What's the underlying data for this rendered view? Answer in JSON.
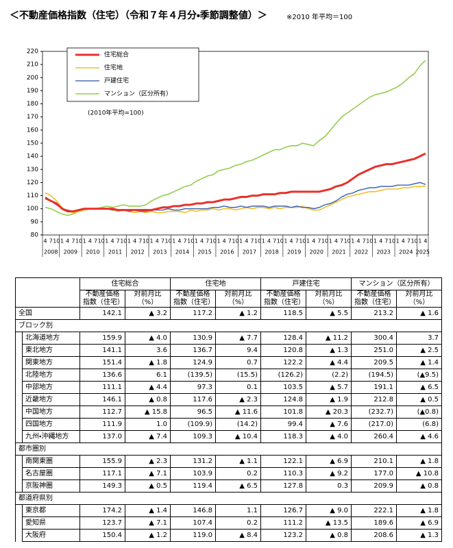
{
  "chart_data": {
    "type": "line",
    "title": "＜不動産価格指数（住宅）（令和７年４月分・季節調整値）＞",
    "subtitle": "※2010 年平均＝100",
    "note": "(2010年平均=100)",
    "categories": [
      "4",
      "7",
      "10",
      "1",
      "4",
      "7",
      "10",
      "1",
      "4",
      "7",
      "10",
      "1",
      "4",
      "7",
      "10",
      "1",
      "4",
      "7",
      "10",
      "1",
      "4",
      "7",
      "10",
      "1",
      "4",
      "7",
      "10",
      "1",
      "4",
      "7",
      "10",
      "1",
      "4",
      "7",
      "10",
      "1",
      "4",
      "7",
      "10",
      "1",
      "4",
      "7",
      "10",
      "1",
      "4",
      "7",
      "10",
      "1",
      "4",
      "7",
      "10",
      "1",
      "4",
      "7",
      "10",
      "1",
      "4",
      "7",
      "10",
      "1",
      "4",
      "7",
      "10",
      "1",
      "4",
      "7",
      "10",
      "1",
      "4"
    ],
    "years": [
      "2008",
      "2009",
      "2010",
      "2011",
      "2012",
      "2013",
      "2014",
      "2015",
      "2016",
      "2017",
      "2018",
      "2019",
      "2020",
      "2021",
      "2022",
      "2023",
      "2024",
      "2025"
    ],
    "ylim": [
      80,
      220
    ],
    "yticks": [
      80,
      90,
      100,
      110,
      120,
      130,
      140,
      150,
      160,
      170,
      180,
      190,
      200,
      210,
      220
    ],
    "series": [
      {
        "name": "住宅総合",
        "color": "#e8302a",
        "values": [
          108,
          106,
          104,
          100,
          98,
          98,
          99,
          100,
          100,
          100,
          100,
          100,
          100,
          99,
          99,
          99,
          99,
          99,
          99,
          99,
          100,
          101,
          101,
          102,
          102,
          103,
          103,
          104,
          104,
          105,
          105,
          106,
          107,
          107,
          108,
          109,
          109,
          110,
          110,
          111,
          111,
          111,
          112,
          112,
          113,
          113,
          113,
          113,
          113,
          113,
          114,
          115,
          117,
          118,
          120,
          123,
          126,
          128,
          130,
          132,
          133,
          134,
          134,
          135,
          136,
          137,
          138,
          140,
          142.1
        ]
      },
      {
        "name": "住宅地",
        "color": "#f5be2a",
        "values": [
          112,
          110,
          106,
          101,
          98,
          97,
          98,
          99,
          100,
          100,
          101,
          100,
          99,
          98,
          99,
          98,
          97,
          98,
          97,
          98,
          97,
          97,
          98,
          98,
          98,
          97,
          99,
          98,
          99,
          99,
          100,
          99,
          100,
          100,
          99,
          100,
          101,
          100,
          101,
          101,
          100,
          101,
          100,
          101,
          101,
          101,
          102,
          100,
          99,
          99,
          101,
          103,
          105,
          107,
          109,
          110,
          111,
          112,
          113,
          113,
          114,
          115,
          115,
          115,
          116,
          116,
          117,
          117,
          117.2
        ]
      },
      {
        "name": "戸建住宅",
        "color": "#4a6fb5",
        "values": [
          109,
          106,
          103,
          100,
          99,
          98,
          99,
          100,
          100,
          100,
          100,
          100,
          99,
          99,
          99,
          98,
          99,
          98,
          98,
          99,
          99,
          99,
          100,
          99,
          99,
          100,
          100,
          100,
          100,
          100,
          101,
          101,
          102,
          101,
          101,
          102,
          101,
          102,
          102,
          102,
          101,
          102,
          102,
          102,
          101,
          102,
          101,
          101,
          100,
          101,
          103,
          104,
          106,
          109,
          111,
          112,
          114,
          115,
          116,
          116,
          117,
          117,
          117,
          118,
          118,
          118,
          119,
          120,
          118.5
        ]
      },
      {
        "name": "マンション（区分所有）",
        "color": "#92cd4f",
        "values": [
          101,
          100,
          98,
          96,
          95,
          96,
          98,
          99,
          100,
          100,
          101,
          102,
          101,
          102,
          103,
          102,
          102,
          102,
          103,
          106,
          108,
          110,
          111,
          113,
          115,
          117,
          118,
          121,
          123,
          125,
          126,
          129,
          130,
          131,
          133,
          134,
          136,
          137,
          139,
          141,
          143,
          145,
          145,
          147,
          148,
          148,
          150,
          149,
          148,
          152,
          155,
          160,
          165,
          170,
          173,
          176,
          179,
          182,
          185,
          187,
          188,
          189,
          191,
          193,
          196,
          200,
          203,
          209,
          213.2
        ]
      }
    ]
  },
  "table": {
    "columns": [
      "住宅総合",
      "住宅地",
      "戸建住宅",
      "マンション（区分所有）"
    ],
    "subcolumns": [
      "不動産価格\n指数（住宅）",
      "対前月比（%）"
    ],
    "national": {
      "label": "全国",
      "cells": [
        "142.1",
        "▲ 3.2",
        "117.2",
        "▲ 1.2",
        "118.5",
        "▲ 5.5",
        "213.2",
        "▲ 1.6"
      ]
    },
    "sections": [
      {
        "label": "ブロック別",
        "rows": [
          {
            "label": "北海道地方",
            "cells": [
              "159.9",
              "▲ 4.0",
              "130.9",
              "▲ 7.7",
              "128.4",
              "▲ 11.2",
              "300.4",
              "3.7"
            ]
          },
          {
            "label": "東北地方",
            "cells": [
              "141.1",
              "3.6",
              "136.7",
              "9.4",
              "120.8",
              "▲ 1.3",
              "251.0",
              "▲ 2.5"
            ]
          },
          {
            "label": "関東地方",
            "cells": [
              "151.4",
              "▲ 1.8",
              "124.9",
              "0.7",
              "122.2",
              "▲ 4.4",
              "209.5",
              "▲ 1.4"
            ]
          },
          {
            "label": "北陸地方",
            "cells": [
              "136.6",
              "6.1",
              "(139.5)",
              "(15.5)",
              "(126.2)",
              "(2.2)",
              "(194.5)",
              "(▲9.5)"
            ]
          },
          {
            "label": "中部地方",
            "cells": [
              "111.1",
              "▲ 4.4",
              "97.3",
              "0.1",
              "103.5",
              "▲ 5.7",
              "191.1",
              "▲ 6.5"
            ]
          },
          {
            "label": "近畿地方",
            "cells": [
              "146.1",
              "▲ 0.8",
              "117.6",
              "▲ 2.3",
              "124.8",
              "▲ 1.9",
              "212.8",
              "▲ 0.5"
            ]
          },
          {
            "label": "中国地方",
            "cells": [
              "112.7",
              "▲ 15.8",
              "96.5",
              "▲ 11.6",
              "101.8",
              "▲ 20.3",
              "(232.7)",
              "(▲0.8)"
            ]
          },
          {
            "label": "四国地方",
            "cells": [
              "111.9",
              "1.0",
              "(109.9)",
              "(14.2)",
              "99.4",
              "▲ 7.6",
              "(217.0)",
              "(6.8)"
            ]
          },
          {
            "label": "九州・沖縄地方",
            "cells": [
              "137.0",
              "▲ 7.4",
              "109.3",
              "▲ 10.4",
              "118.3",
              "▲ 4.0",
              "260.4",
              "▲ 4.6"
            ]
          }
        ]
      },
      {
        "label": "都市圏別",
        "rows": [
          {
            "label": "南関東圏",
            "cells": [
              "155.9",
              "▲ 2.3",
              "131.2",
              "▲ 1.1",
              "122.1",
              "▲ 6.9",
              "210.1",
              "▲ 1.8"
            ]
          },
          {
            "label": "名古屋圏",
            "cells": [
              "117.1",
              "▲ 7.1",
              "103.9",
              "0.2",
              "110.3",
              "▲ 9.2",
              "177.0",
              "▲ 10.8"
            ]
          },
          {
            "label": "京阪神圏",
            "cells": [
              "149.3",
              "▲ 0.5",
              "119.4",
              "▲ 6.5",
              "127.8",
              "0.3",
              "209.9",
              "▲ 0.8"
            ]
          }
        ]
      },
      {
        "label": "都道府県別",
        "rows": [
          {
            "label": "東京都",
            "cells": [
              "174.2",
              "▲ 1.4",
              "146.8",
              "1.1",
              "126.7",
              "▲ 9.0",
              "222.1",
              "▲ 1.8"
            ]
          },
          {
            "label": "愛知県",
            "cells": [
              "123.7",
              "▲ 7.1",
              "107.4",
              "0.2",
              "111.2",
              "▲ 13.5",
              "189.6",
              "▲ 6.9"
            ]
          },
          {
            "label": "大阪府",
            "cells": [
              "150.4",
              "▲ 1.2",
              "119.0",
              "▲ 8.4",
              "123.2",
              "▲ 0.8",
              "208.6",
              "▲ 1.3"
            ]
          }
        ]
      }
    ]
  }
}
